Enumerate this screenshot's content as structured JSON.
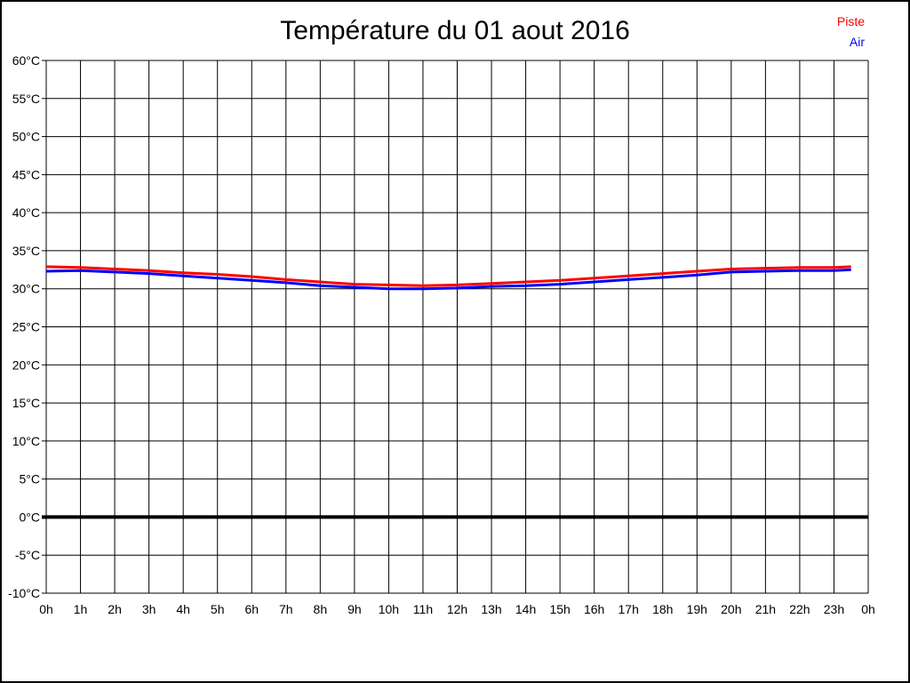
{
  "title": "Température du 01 aout 2016",
  "legend": {
    "items": [
      {
        "label": "Piste",
        "color": "#ff0000"
      },
      {
        "label": "Air",
        "color": "#0000ff"
      }
    ]
  },
  "colors": {
    "background": "#ffffff",
    "grid": "#000000",
    "frame_border": "#000000",
    "zero_line": "#000000",
    "text": "#000000"
  },
  "chart_data": {
    "type": "line",
    "title": "Température du 01 aout 2016",
    "xlabel": "",
    "ylabel": "",
    "grid": true,
    "legend_position": "top-right",
    "xlim": [
      0,
      24
    ],
    "ylim": [
      -10,
      60
    ],
    "ytick_step": 5,
    "x_tick_labels": [
      "0h",
      "1h",
      "2h",
      "3h",
      "4h",
      "5h",
      "6h",
      "7h",
      "8h",
      "9h",
      "10h",
      "11h",
      "12h",
      "13h",
      "14h",
      "15h",
      "16h",
      "17h",
      "18h",
      "19h",
      "20h",
      "21h",
      "22h",
      "23h",
      "0h"
    ],
    "y_tick_labels": [
      "60°C",
      "55°C",
      "50°C",
      "45°C",
      "40°C",
      "35°C",
      "30°C",
      "25°C",
      "20°C",
      "15°C",
      "10°C",
      "5°C",
      "0°C",
      "-5°C",
      "-10°C"
    ],
    "y_tick_values": [
      60,
      55,
      50,
      45,
      40,
      35,
      30,
      25,
      20,
      15,
      10,
      5,
      0,
      -5,
      -10
    ],
    "zero_line": {
      "value": 0,
      "width": 4
    },
    "x": [
      0,
      1,
      2,
      3,
      4,
      5,
      6,
      7,
      8,
      9,
      10,
      11,
      12,
      13,
      14,
      15,
      16,
      17,
      18,
      19,
      20,
      21,
      22,
      23,
      23.5
    ],
    "series": [
      {
        "name": "Piste",
        "color": "#ff0000",
        "values": [
          32.9,
          32.8,
          32.6,
          32.4,
          32.1,
          31.9,
          31.6,
          31.2,
          30.9,
          30.6,
          30.5,
          30.4,
          30.5,
          30.7,
          30.9,
          31.1,
          31.4,
          31.7,
          32.0,
          32.3,
          32.6,
          32.7,
          32.8,
          32.8,
          32.9
        ]
      },
      {
        "name": "Air",
        "color": "#0000ff",
        "values": [
          32.3,
          32.4,
          32.2,
          32.0,
          31.7,
          31.4,
          31.1,
          30.8,
          30.4,
          30.2,
          30.0,
          30.0,
          30.1,
          30.3,
          30.4,
          30.6,
          30.9,
          31.2,
          31.5,
          31.8,
          32.2,
          32.3,
          32.4,
          32.4,
          32.5
        ]
      }
    ]
  }
}
